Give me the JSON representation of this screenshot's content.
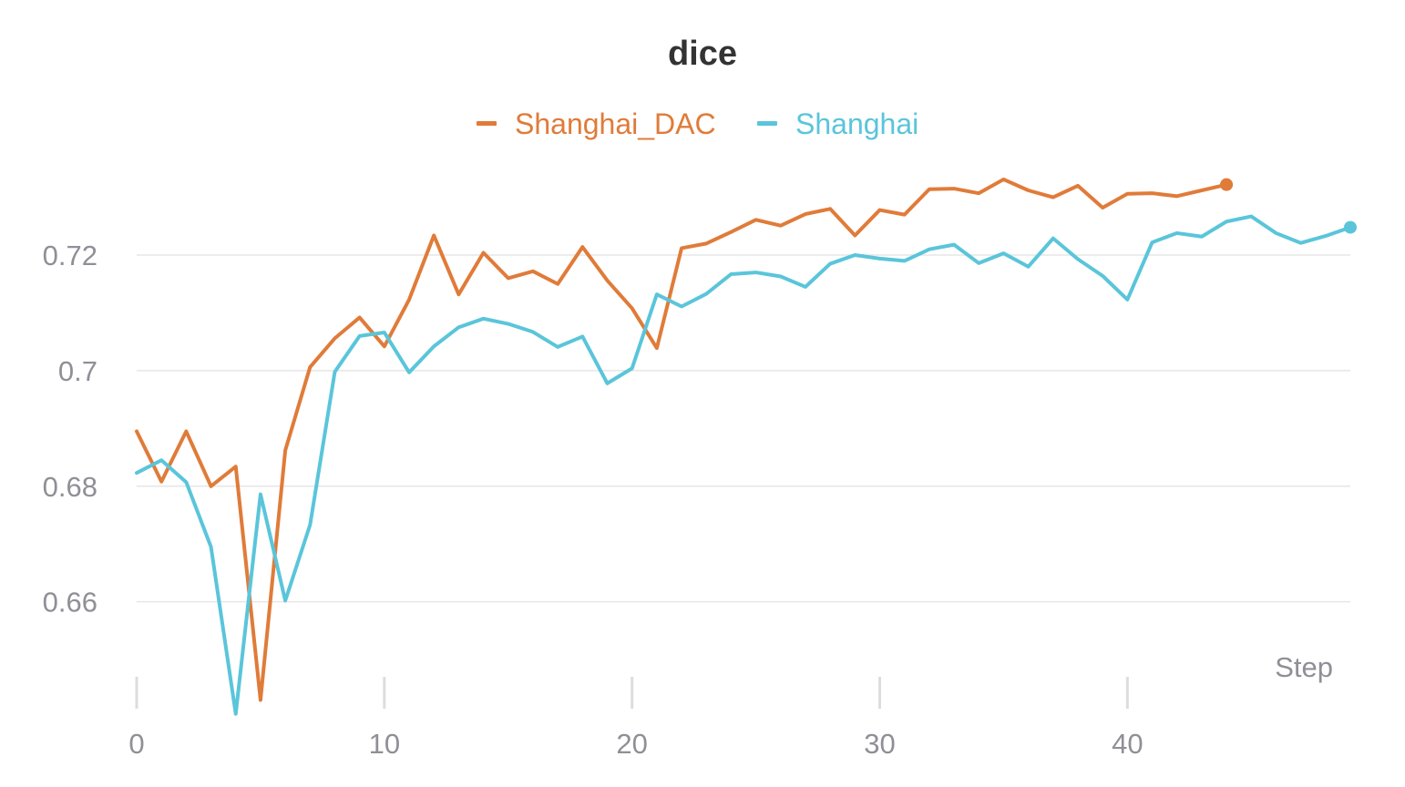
{
  "chart_data": {
    "type": "line",
    "title": "dice",
    "xlabel": "Step",
    "ylabel": "",
    "xlim": [
      0,
      49
    ],
    "ylim": [
      0.6415,
      0.7405
    ],
    "x_ticks": [
      0,
      10,
      20,
      30,
      40
    ],
    "x_tick_labels": [
      "0",
      "10",
      "20",
      "30",
      "40"
    ],
    "y_ticks": [
      0.66,
      0.68,
      0.7,
      0.72
    ],
    "y_tick_labels": [
      "0.66",
      "0.68",
      "0.7",
      "0.72"
    ],
    "grid": true,
    "legend_position": "top-center",
    "series": [
      {
        "name": "Shanghai_DAC",
        "color": "#e07b39",
        "x": [
          0,
          1,
          2,
          3,
          4,
          5,
          6,
          7,
          8,
          9,
          10,
          11,
          12,
          13,
          14,
          15,
          16,
          17,
          18,
          19,
          20,
          21,
          22,
          23,
          24,
          25,
          26,
          27,
          28,
          29,
          30,
          31,
          32,
          33,
          34,
          35,
          36,
          37,
          38,
          39,
          40,
          41,
          42,
          43,
          44
        ],
        "values": [
          0.6895,
          0.6808,
          0.6895,
          0.68,
          0.6834,
          0.643,
          0.6862,
          0.7006,
          0.7056,
          0.7092,
          0.7042,
          0.7123,
          0.7234,
          0.7132,
          0.7204,
          0.716,
          0.7172,
          0.715,
          0.7214,
          0.7156,
          0.7108,
          0.7039,
          0.7212,
          0.722,
          0.724,
          0.7261,
          0.7251,
          0.7271,
          0.728,
          0.7234,
          0.7278,
          0.727,
          0.7314,
          0.7315,
          0.7307,
          0.7331,
          0.7312,
          0.73,
          0.732,
          0.7282,
          0.7306,
          0.7307,
          0.7302,
          0.7312,
          0.7322
        ]
      },
      {
        "name": "Shanghai",
        "color": "#5ac5da",
        "x": [
          0,
          1,
          2,
          3,
          4,
          5,
          6,
          7,
          8,
          9,
          10,
          11,
          12,
          13,
          14,
          15,
          16,
          17,
          18,
          19,
          20,
          21,
          22,
          23,
          24,
          25,
          26,
          27,
          28,
          29,
          30,
          31,
          32,
          33,
          34,
          35,
          36,
          37,
          38,
          39,
          40,
          41,
          42,
          43,
          44,
          45,
          46,
          47,
          48,
          49
        ],
        "values": [
          0.6823,
          0.6845,
          0.6807,
          0.6695,
          0.6406,
          0.6786,
          0.6602,
          0.6733,
          0.6998,
          0.706,
          0.7066,
          0.6997,
          0.7042,
          0.7075,
          0.709,
          0.7081,
          0.7067,
          0.7041,
          0.7059,
          0.6978,
          0.7004,
          0.7132,
          0.7111,
          0.7133,
          0.7167,
          0.717,
          0.7163,
          0.7145,
          0.7185,
          0.72,
          0.7194,
          0.719,
          0.721,
          0.7218,
          0.7186,
          0.7203,
          0.718,
          0.7229,
          0.7193,
          0.7164,
          0.7123,
          0.7222,
          0.7238,
          0.7232,
          0.7258,
          0.7267,
          0.7238,
          0.7221,
          0.7233,
          0.7248
        ]
      }
    ]
  }
}
